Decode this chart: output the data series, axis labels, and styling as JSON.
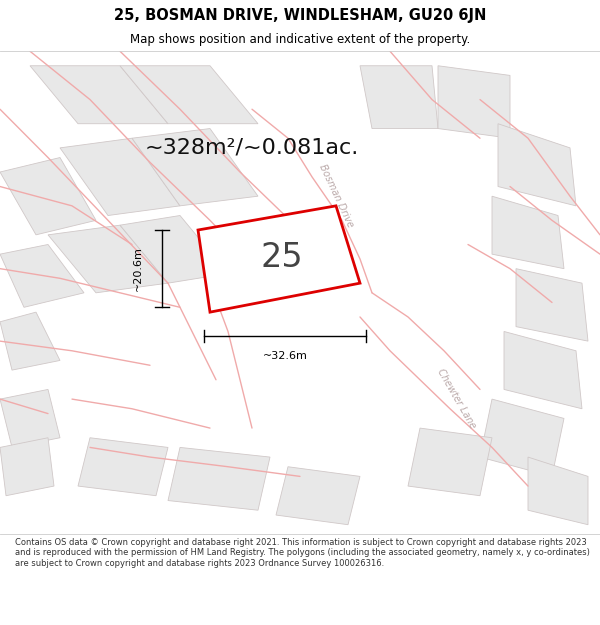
{
  "title": "25, BOSMAN DRIVE, WINDLESHAM, GU20 6JN",
  "subtitle": "Map shows position and indicative extent of the property.",
  "area_text": "~328m²/~0.081ac.",
  "plot_number": "25",
  "width_label": "~32.6m",
  "height_label": "~20.6m",
  "footer": "Contains OS data © Crown copyright and database right 2021. This information is subject to Crown copyright and database rights 2023 and is reproduced with the permission of HM Land Registry. The polygons (including the associated geometry, namely x, y co-ordinates) are subject to Crown copyright and database rights 2023 Ordnance Survey 100026316.",
  "bg_color": "#ffffff",
  "map_bg": "#ffffff",
  "plot_color": "#dd0000",
  "plot_fill": "#ffffff",
  "road_color": "#f0aaaa",
  "neighbor_fill": "#e8e8e8",
  "neighbor_stroke": "#d0c8c8",
  "road_label_color": "#bbaaaa",
  "title_color": "#000000",
  "footer_color": "#333333",
  "title_fontsize": 10.5,
  "subtitle_fontsize": 8.5,
  "area_fontsize": 16,
  "plot_num_fontsize": 24,
  "dim_fontsize": 8,
  "footer_fontsize": 6.0
}
